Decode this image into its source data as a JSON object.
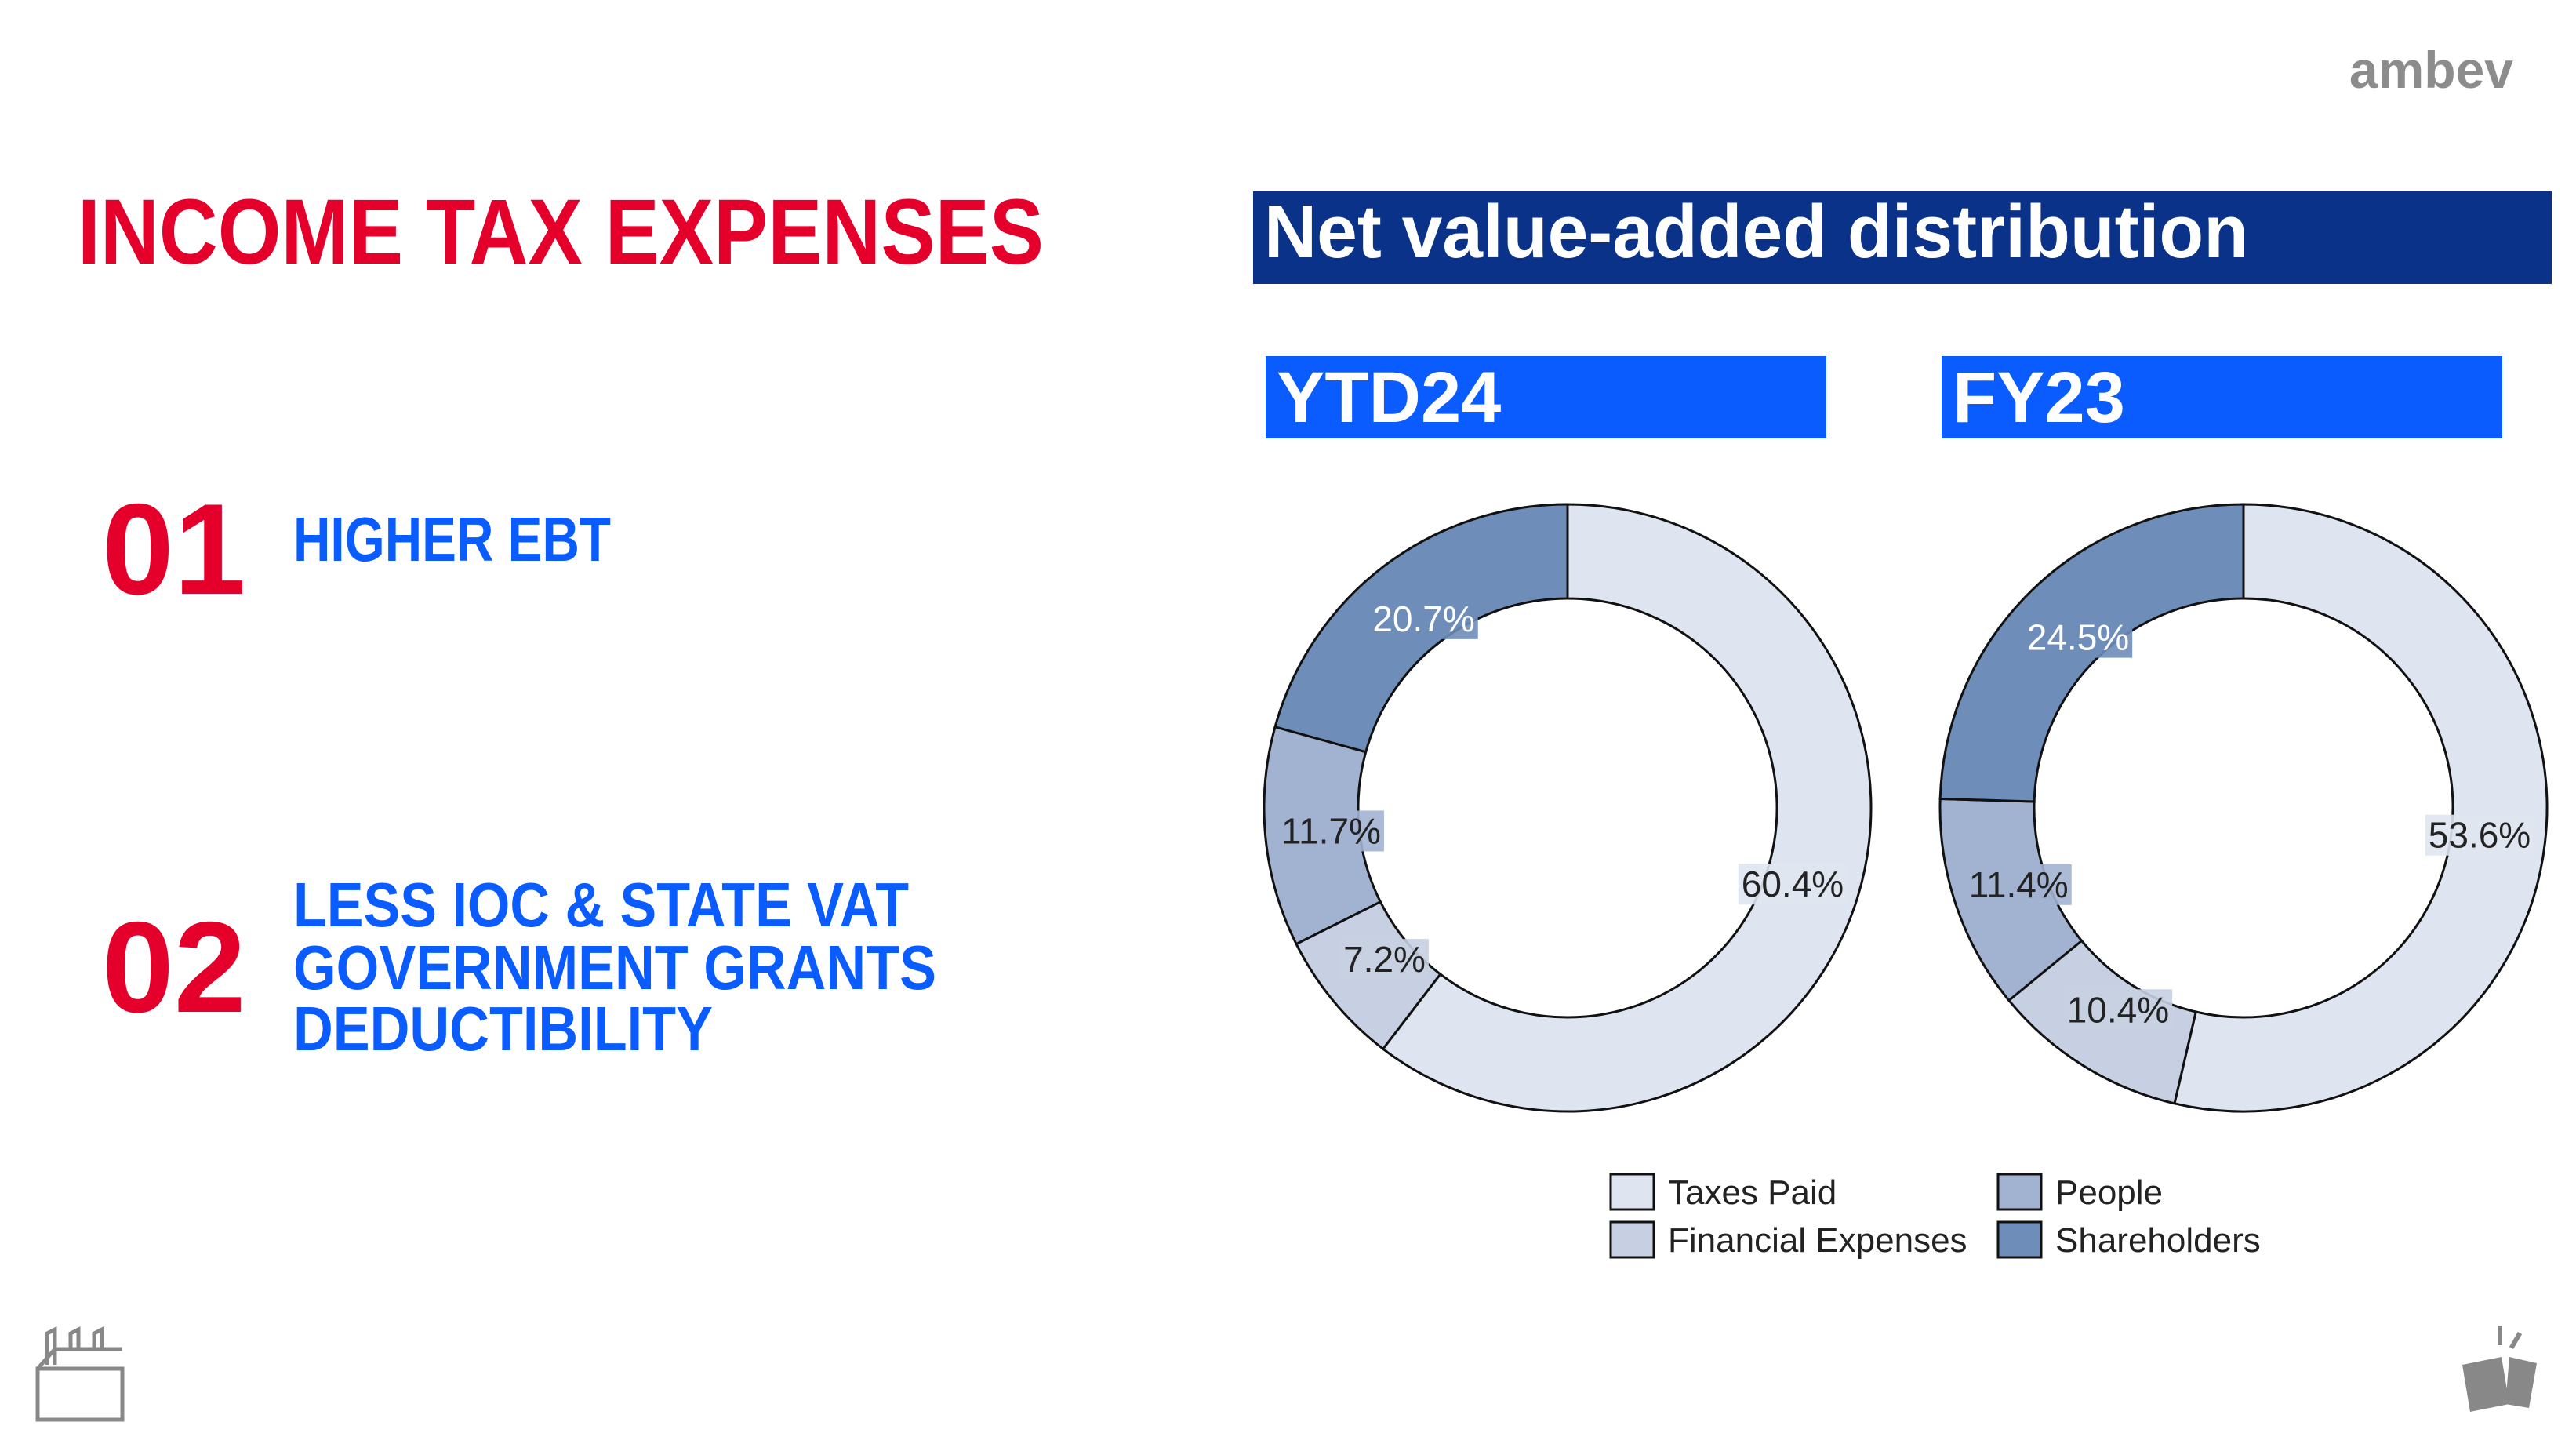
{
  "header": {
    "logo": "ambev",
    "title": "INCOME TAX EXPENSES"
  },
  "points": [
    {
      "number": "01",
      "lines": [
        "HIGHER EBT"
      ]
    },
    {
      "number": "02",
      "lines": [
        "LESS IOC & STATE VAT",
        "GOVERNMENT GRANTS",
        "DEDUCTIBILITY"
      ]
    }
  ],
  "panel_title": "Net value-added distribution",
  "chart_data": [
    {
      "type": "pie",
      "title": "YTD24",
      "categories": [
        "Taxes Paid",
        "Financial Expenses",
        "People",
        "Shareholders"
      ],
      "values": [
        60.4,
        7.2,
        11.7,
        20.7
      ],
      "value_labels": [
        "60.4%",
        "7.2%",
        "11.7%",
        "20.7%"
      ],
      "colors": [
        "#dfe5f0",
        "#c6d0e2",
        "#a2b3d2",
        "#6f8db9"
      ]
    },
    {
      "type": "pie",
      "title": "FY23",
      "categories": [
        "Taxes Paid",
        "Financial Expenses",
        "People",
        "Shareholders"
      ],
      "values": [
        53.6,
        10.4,
        11.4,
        24.5
      ],
      "value_labels": [
        "53.6%",
        "10.4%",
        "11.4%",
        "24.5%"
      ],
      "colors": [
        "#dfe5f0",
        "#c6d0e2",
        "#a2b3d2",
        "#6f8db9"
      ]
    }
  ]
}
